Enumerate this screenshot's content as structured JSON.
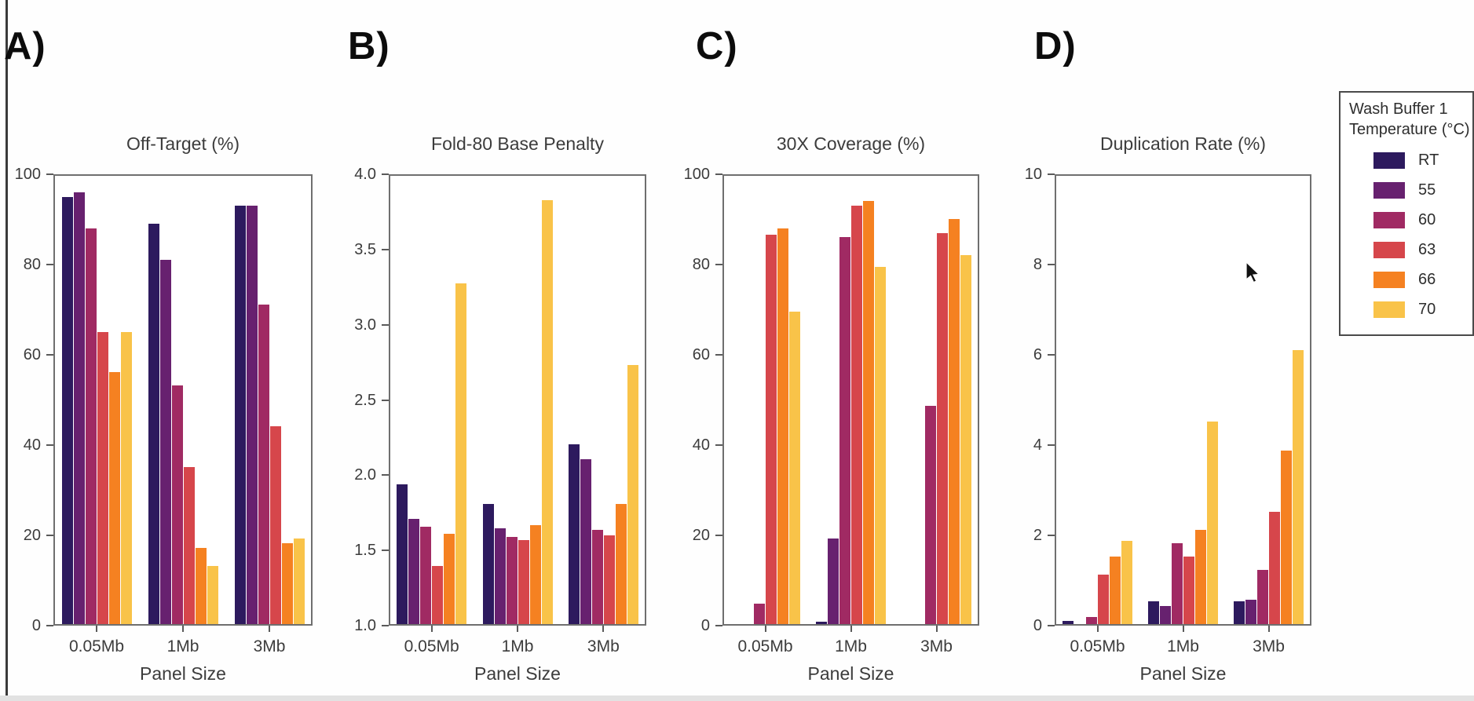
{
  "figure": {
    "background": "#ffffff",
    "axis_color": "#6f6f6f",
    "text_color": "#3c3c3c"
  },
  "legend": {
    "title_lines": [
      "Wash Buffer 1",
      "Temperature (°C)"
    ],
    "entries": [
      {
        "label": "RT",
        "color": "#2d1a5e"
      },
      {
        "label": "55",
        "color": "#67216f"
      },
      {
        "label": "60",
        "color": "#a02a63"
      },
      {
        "label": "63",
        "color": "#d6464b"
      },
      {
        "label": "66",
        "color": "#f58121"
      },
      {
        "label": "70",
        "color": "#f9c349"
      }
    ]
  },
  "chart_data": [
    {
      "type": "bar",
      "panel_label": "A)",
      "title": "Off-Target (%)",
      "xlabel": "Panel Size",
      "categories": [
        "0.05Mb",
        "1Mb",
        "3Mb"
      ],
      "series": [
        {
          "name": "RT",
          "values": [
            95,
            89,
            93
          ]
        },
        {
          "name": "55",
          "values": [
            96,
            81,
            93
          ]
        },
        {
          "name": "60",
          "values": [
            88,
            53,
            71
          ]
        },
        {
          "name": "63",
          "values": [
            65,
            35,
            44
          ]
        },
        {
          "name": "66",
          "values": [
            56,
            17,
            18
          ]
        },
        {
          "name": "70",
          "values": [
            65,
            13,
            19
          ]
        }
      ],
      "ylim": [
        0,
        100
      ],
      "yticks": [
        0,
        20,
        40,
        60,
        80,
        100
      ],
      "ytick_labels": [
        "0",
        "20",
        "40",
        "60",
        "80",
        "100"
      ],
      "grid": false,
      "legend_position": "outside-right"
    },
    {
      "type": "bar",
      "panel_label": "B)",
      "title": "Fold-80 Base Penalty",
      "xlabel": "Panel Size",
      "categories": [
        "0.05Mb",
        "1Mb",
        "3Mb"
      ],
      "series": [
        {
          "name": "RT",
          "values": [
            1.93,
            1.8,
            2.2
          ]
        },
        {
          "name": "55",
          "values": [
            1.7,
            1.64,
            2.1
          ]
        },
        {
          "name": "60",
          "values": [
            1.65,
            1.58,
            1.63
          ]
        },
        {
          "name": "63",
          "values": [
            1.39,
            1.56,
            1.59
          ]
        },
        {
          "name": "66",
          "values": [
            1.6,
            1.66,
            1.8
          ]
        },
        {
          "name": "70",
          "values": [
            3.27,
            3.83,
            2.73
          ]
        }
      ],
      "ylim": [
        1.0,
        4.0
      ],
      "yticks": [
        1.0,
        1.5,
        2.0,
        2.5,
        3.0,
        3.5,
        4.0
      ],
      "ytick_labels": [
        "1.0",
        "1.5",
        "2.0",
        "2.5",
        "3.0",
        "3.5",
        "4.0"
      ],
      "grid": false,
      "legend_position": "outside-right"
    },
    {
      "type": "bar",
      "panel_label": "C)",
      "title": "30X Coverage (%)",
      "xlabel": "Panel Size",
      "categories": [
        "0.05Mb",
        "1Mb",
        "3Mb"
      ],
      "series": [
        {
          "name": "RT",
          "values": [
            0,
            0.5,
            0
          ]
        },
        {
          "name": "55",
          "values": [
            0,
            19,
            0
          ]
        },
        {
          "name": "60",
          "values": [
            4.5,
            86,
            48.5
          ]
        },
        {
          "name": "63",
          "values": [
            86.5,
            93,
            87
          ]
        },
        {
          "name": "66",
          "values": [
            88,
            94,
            90
          ]
        },
        {
          "name": "70",
          "values": [
            69.5,
            79.5,
            82
          ]
        }
      ],
      "ylim": [
        0,
        100
      ],
      "yticks": [
        0,
        20,
        40,
        60,
        80,
        100
      ],
      "ytick_labels": [
        "0",
        "20",
        "40",
        "60",
        "80",
        "100"
      ],
      "grid": false,
      "legend_position": "outside-right"
    },
    {
      "type": "bar",
      "panel_label": "D)",
      "title": "Duplication Rate (%)",
      "xlabel": "Panel Size",
      "categories": [
        "0.05Mb",
        "1Mb",
        "3Mb"
      ],
      "series": [
        {
          "name": "RT",
          "values": [
            0.07,
            0.5,
            0.5
          ]
        },
        {
          "name": "55",
          "values": [
            0,
            0.4,
            0.55
          ]
        },
        {
          "name": "60",
          "values": [
            0.15,
            1.8,
            1.2
          ]
        },
        {
          "name": "63",
          "values": [
            1.1,
            1.5,
            2.5
          ]
        },
        {
          "name": "66",
          "values": [
            1.5,
            2.1,
            3.85
          ]
        },
        {
          "name": "70",
          "values": [
            1.85,
            4.5,
            6.1
          ]
        }
      ],
      "ylim": [
        0,
        10
      ],
      "yticks": [
        0,
        2,
        4,
        6,
        8,
        10
      ],
      "ytick_labels": [
        "0",
        "2",
        "4",
        "6",
        "8",
        "10"
      ],
      "grid": false,
      "legend_position": "outside-right"
    }
  ]
}
